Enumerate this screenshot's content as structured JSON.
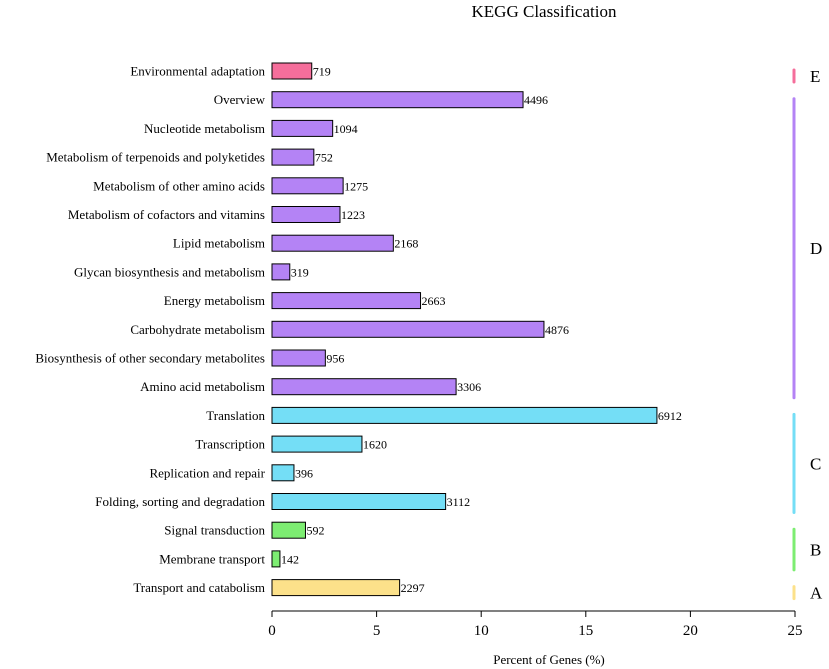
{
  "chart_data": {
    "type": "bar",
    "orientation": "horizontal",
    "title": "KEGG Classification",
    "xlabel": "Percent of Genes (%)",
    "ylabel": "",
    "xlim": [
      0,
      25
    ],
    "xticks": [
      0,
      5,
      10,
      15,
      20,
      25
    ],
    "grid": false,
    "categories": [
      "Environmental adaptation",
      "Overview",
      "Nucleotide metabolism",
      "Metabolism of terpenoids and polyketides",
      "Metabolism of other amino acids",
      "Metabolism of cofactors and vitamins",
      "Lipid metabolism",
      "Glycan biosynthesis and metabolism",
      "Energy metabolism",
      "Carbohydrate metabolism",
      "Biosynthesis of other secondary metabolites",
      "Amino acid metabolism",
      "Translation",
      "Transcription",
      "Replication and repair",
      "Folding, sorting and degradation",
      "Signal transduction",
      "Membrane transport",
      "Transport and catabolism"
    ],
    "percent_values": [
      1.9,
      12.0,
      2.9,
      2.0,
      3.4,
      3.25,
      5.8,
      0.85,
      7.1,
      13.0,
      2.55,
      8.8,
      18.4,
      4.3,
      1.05,
      8.3,
      1.6,
      0.38,
      6.1
    ],
    "gene_counts": [
      "719",
      "4496",
      "1094",
      "752",
      "1275",
      "1223",
      "2168",
      "319",
      "2663",
      "4876",
      "956",
      "3306",
      "6912",
      "1620",
      "396",
      "3112",
      "592",
      "142",
      "2297"
    ],
    "groups": [
      "E",
      "D",
      "D",
      "D",
      "D",
      "D",
      "D",
      "D",
      "D",
      "D",
      "D",
      "D",
      "C",
      "C",
      "C",
      "C",
      "B",
      "B",
      "A"
    ],
    "group_info": [
      {
        "name": "E",
        "color": "#f56e9b"
      },
      {
        "name": "D",
        "color": "#b483f5"
      },
      {
        "name": "C",
        "color": "#74def6"
      },
      {
        "name": "B",
        "color": "#7ded72"
      },
      {
        "name": "A",
        "color": "#fce18a"
      }
    ]
  }
}
